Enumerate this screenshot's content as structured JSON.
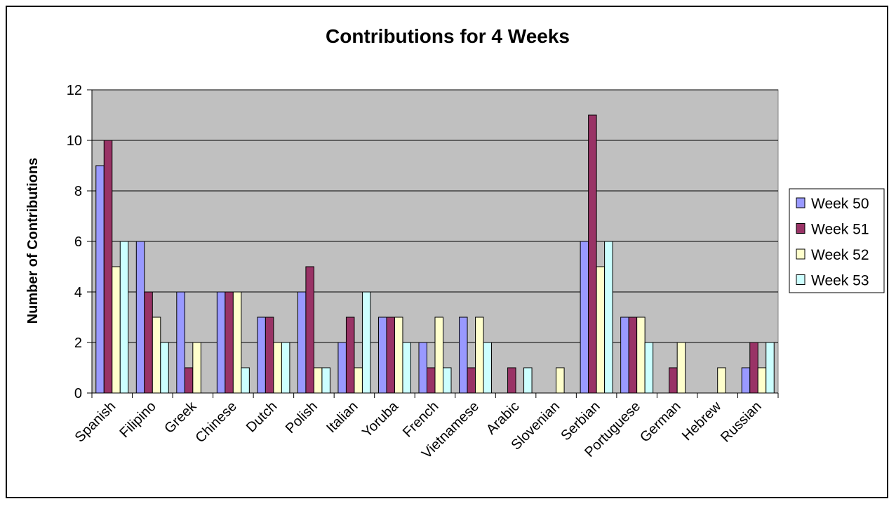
{
  "chart_data": {
    "type": "bar",
    "title": "Contributions for 4 Weeks",
    "xlabel": "",
    "ylabel": "Number of Contributions",
    "ylim": [
      0,
      12
    ],
    "yticks": [
      0,
      2,
      4,
      6,
      8,
      10,
      12
    ],
    "grid": true,
    "legend_position": "right",
    "plot_background": "#C0C0C0",
    "categories": [
      "Spanish",
      "Filipino",
      "Greek",
      "Chinese",
      "Dutch",
      "Polish",
      "Italian",
      "Yoruba",
      "French",
      "Vietnamese",
      "Arabic",
      "Slovenian",
      "Serbian",
      "Portuguese",
      "German",
      "Hebrew",
      "Russian"
    ],
    "series": [
      {
        "name": "Week 50",
        "color": "#9999FF",
        "values": [
          9,
          6,
          4,
          4,
          3,
          4,
          2,
          3,
          2,
          3,
          0,
          0,
          6,
          3,
          0,
          0,
          1
        ]
      },
      {
        "name": "Week 51",
        "color": "#993366",
        "values": [
          10,
          4,
          1,
          4,
          3,
          5,
          3,
          3,
          1,
          1,
          1,
          0,
          11,
          3,
          1,
          0,
          2
        ]
      },
      {
        "name": "Week 52",
        "color": "#FFFFCC",
        "values": [
          5,
          3,
          2,
          4,
          2,
          1,
          1,
          3,
          3,
          3,
          0,
          1,
          5,
          3,
          2,
          1,
          1
        ]
      },
      {
        "name": "Week 53",
        "color": "#CCFFFF",
        "values": [
          6,
          2,
          0,
          1,
          2,
          1,
          4,
          2,
          1,
          2,
          1,
          0,
          6,
          2,
          0,
          0,
          2
        ]
      }
    ]
  }
}
